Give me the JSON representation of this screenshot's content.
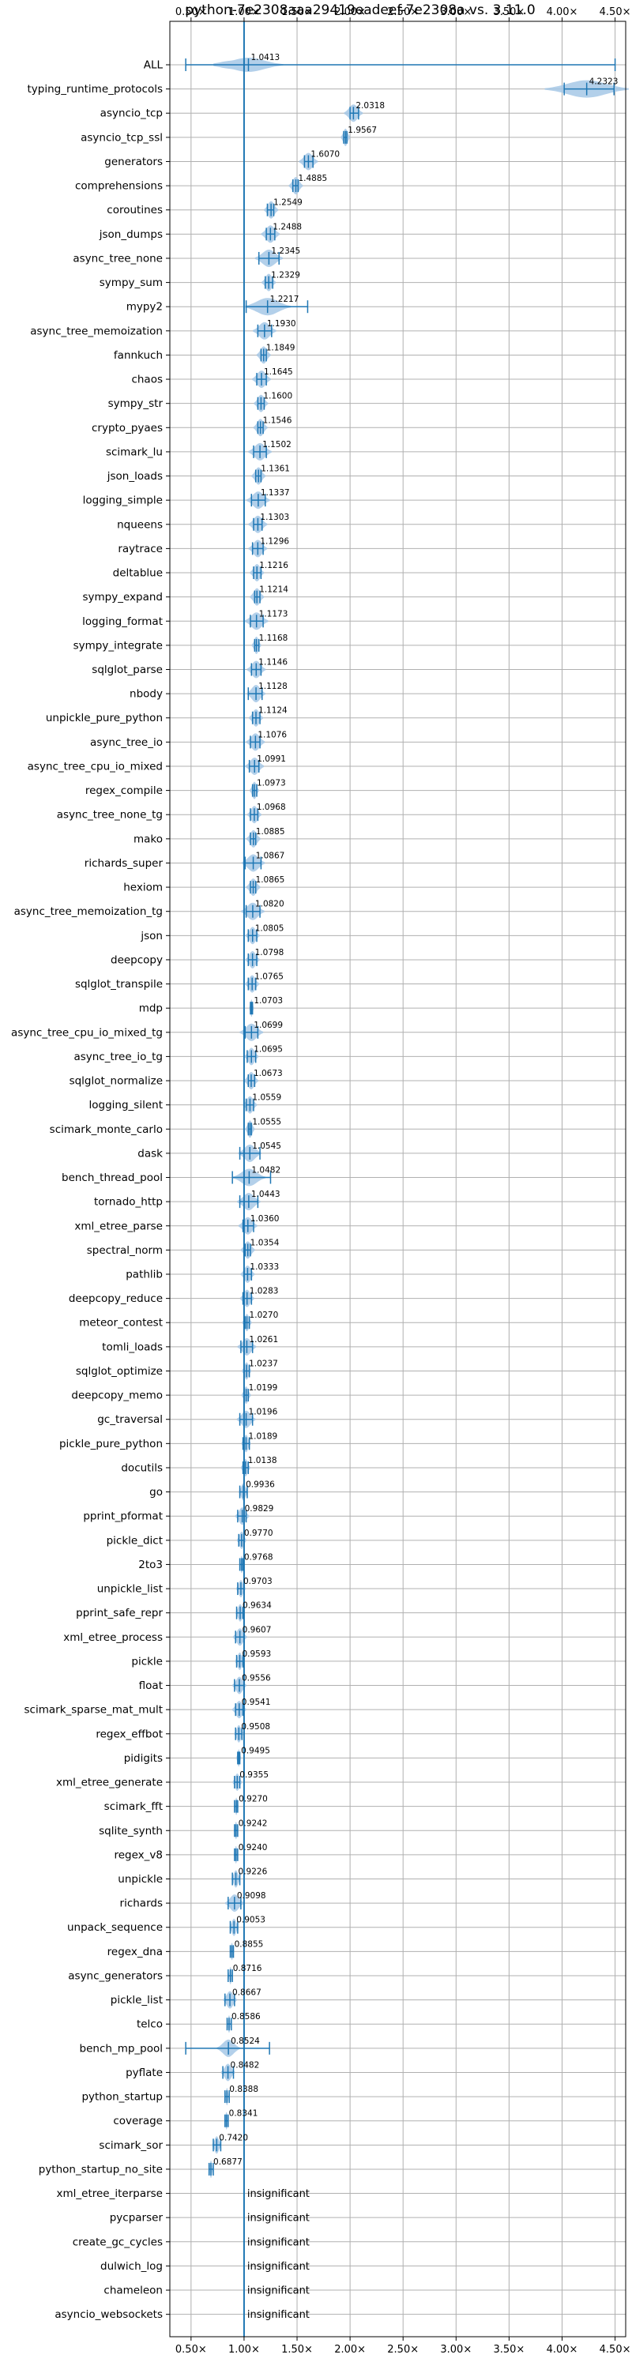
{
  "chart_data": {
    "type": "violin",
    "title": "python-7e2308aaa29419eadeef-7e2308a vs. 3.11.0",
    "xlabel": "",
    "ylabel": "",
    "xlim": [
      0.3,
      4.6
    ],
    "x_ticks": [
      0.5,
      1.0,
      1.5,
      2.0,
      2.5,
      3.0,
      3.5,
      4.0,
      4.5
    ],
    "x_tick_labels": [
      "0.50×",
      "1.00×",
      "1.50×",
      "2.00×",
      "2.50×",
      "3.00×",
      "3.50×",
      "4.00×",
      "4.50×"
    ],
    "reference_line": 1.0,
    "grid": true,
    "colors": {
      "violin": "#a6c8e6",
      "error_bar": "#1f77b4",
      "reference": "#1f77b4",
      "grid": "#b0b0b0"
    },
    "insignificant_label": "insignificant",
    "rows": [
      {
        "name": "ALL",
        "mean": 1.0413,
        "label": "1.0413",
        "lo": 0.45,
        "hi": 4.5,
        "spread": 0.15,
        "type": "all"
      },
      {
        "name": "typing_runtime_protocols",
        "mean": 4.2323,
        "label": "4.2323",
        "lo": 4.02,
        "hi": 4.49,
        "spread": 0.18
      },
      {
        "name": "asyncio_tcp",
        "mean": 2.0318,
        "label": "2.0318",
        "lo": 2.0,
        "hi": 2.08,
        "spread": 0.04
      },
      {
        "name": "asyncio_tcp_ssl",
        "mean": 1.9567,
        "label": "1.9567",
        "lo": 1.94,
        "hi": 1.97,
        "spread": 0.02
      },
      {
        "name": "generators",
        "mean": 1.607,
        "label": "1.6070",
        "lo": 1.57,
        "hi": 1.65,
        "spread": 0.04
      },
      {
        "name": "comprehensions",
        "mean": 1.4885,
        "label": "1.4885",
        "lo": 1.46,
        "hi": 1.51,
        "spread": 0.03
      },
      {
        "name": "coroutines",
        "mean": 1.2549,
        "label": "1.2549",
        "lo": 1.22,
        "hi": 1.28,
        "spread": 0.03
      },
      {
        "name": "json_dumps",
        "mean": 1.2488,
        "label": "1.2488",
        "lo": 1.21,
        "hi": 1.29,
        "spread": 0.04
      },
      {
        "name": "async_tree_none",
        "mean": 1.2345,
        "label": "1.2345",
        "lo": 1.14,
        "hi": 1.33,
        "spread": 0.06
      },
      {
        "name": "sympy_sum",
        "mean": 1.2329,
        "label": "1.2329",
        "lo": 1.2,
        "hi": 1.27,
        "spread": 0.03
      },
      {
        "name": "mypy2",
        "mean": 1.2217,
        "label": "1.2217",
        "lo": 1.02,
        "hi": 1.6,
        "spread": 0.1
      },
      {
        "name": "async_tree_memoization",
        "mean": 1.193,
        "label": "1.1930",
        "lo": 1.13,
        "hi": 1.26,
        "spread": 0.05
      },
      {
        "name": "fannkuch",
        "mean": 1.1849,
        "label": "1.1849",
        "lo": 1.16,
        "hi": 1.21,
        "spread": 0.03
      },
      {
        "name": "chaos",
        "mean": 1.1645,
        "label": "1.1645",
        "lo": 1.12,
        "hi": 1.21,
        "spread": 0.04
      },
      {
        "name": "sympy_str",
        "mean": 1.16,
        "label": "1.1600",
        "lo": 1.13,
        "hi": 1.19,
        "spread": 0.03
      },
      {
        "name": "crypto_pyaes",
        "mean": 1.1546,
        "label": "1.1546",
        "lo": 1.13,
        "hi": 1.18,
        "spread": 0.03
      },
      {
        "name": "scimark_lu",
        "mean": 1.1502,
        "label": "1.1502",
        "lo": 1.09,
        "hi": 1.21,
        "spread": 0.05
      },
      {
        "name": "json_loads",
        "mean": 1.1361,
        "label": "1.1361",
        "lo": 1.11,
        "hi": 1.16,
        "spread": 0.03
      },
      {
        "name": "logging_simple",
        "mean": 1.1337,
        "label": "1.1337",
        "lo": 1.07,
        "hi": 1.2,
        "spread": 0.05
      },
      {
        "name": "nqueens",
        "mean": 1.1303,
        "label": "1.1303",
        "lo": 1.09,
        "hi": 1.17,
        "spread": 0.04
      },
      {
        "name": "raytrace",
        "mean": 1.1296,
        "label": "1.1296",
        "lo": 1.08,
        "hi": 1.18,
        "spread": 0.04
      },
      {
        "name": "deltablue",
        "mean": 1.1216,
        "label": "1.1216",
        "lo": 1.09,
        "hi": 1.16,
        "spread": 0.03
      },
      {
        "name": "sympy_expand",
        "mean": 1.1214,
        "label": "1.1214",
        "lo": 1.1,
        "hi": 1.15,
        "spread": 0.03
      },
      {
        "name": "logging_format",
        "mean": 1.1173,
        "label": "1.1173",
        "lo": 1.06,
        "hi": 1.18,
        "spread": 0.05
      },
      {
        "name": "sympy_integrate",
        "mean": 1.1168,
        "label": "1.1168",
        "lo": 1.1,
        "hi": 1.14,
        "spread": 0.02
      },
      {
        "name": "sqlglot_parse",
        "mean": 1.1146,
        "label": "1.1146",
        "lo": 1.07,
        "hi": 1.16,
        "spread": 0.04
      },
      {
        "name": "nbody",
        "mean": 1.1128,
        "label": "1.1128",
        "lo": 1.04,
        "hi": 1.17,
        "spread": 0.04
      },
      {
        "name": "unpickle_pure_python",
        "mean": 1.1124,
        "label": "1.1124",
        "lo": 1.08,
        "hi": 1.15,
        "spread": 0.03
      },
      {
        "name": "async_tree_io",
        "mean": 1.1076,
        "label": "1.1076",
        "lo": 1.06,
        "hi": 1.15,
        "spread": 0.04
      },
      {
        "name": "async_tree_cpu_io_mixed",
        "mean": 1.0991,
        "label": "1.0991",
        "lo": 1.05,
        "hi": 1.14,
        "spread": 0.04
      },
      {
        "name": "regex_compile",
        "mean": 1.0973,
        "label": "1.0973",
        "lo": 1.08,
        "hi": 1.12,
        "spread": 0.02
      },
      {
        "name": "async_tree_none_tg",
        "mean": 1.0968,
        "label": "1.0968",
        "lo": 1.06,
        "hi": 1.13,
        "spread": 0.03
      },
      {
        "name": "mako",
        "mean": 1.0885,
        "label": "1.0885",
        "lo": 1.06,
        "hi": 1.11,
        "spread": 0.03
      },
      {
        "name": "richards_super",
        "mean": 1.0867,
        "label": "1.0867",
        "lo": 1.01,
        "hi": 1.16,
        "spread": 0.05
      },
      {
        "name": "hexiom",
        "mean": 1.0865,
        "label": "1.0865",
        "lo": 1.06,
        "hi": 1.11,
        "spread": 0.03
      },
      {
        "name": "async_tree_memoization_tg",
        "mean": 1.082,
        "label": "1.0820",
        "lo": 1.02,
        "hi": 1.15,
        "spread": 0.05
      },
      {
        "name": "json",
        "mean": 1.0805,
        "label": "1.0805",
        "lo": 1.04,
        "hi": 1.12,
        "spread": 0.03
      },
      {
        "name": "deepcopy",
        "mean": 1.0798,
        "label": "1.0798",
        "lo": 1.04,
        "hi": 1.12,
        "spread": 0.03
      },
      {
        "name": "sqlglot_transpile",
        "mean": 1.0765,
        "label": "1.0765",
        "lo": 1.04,
        "hi": 1.11,
        "spread": 0.03
      },
      {
        "name": "mdp",
        "mean": 1.0703,
        "label": "1.0703",
        "lo": 1.06,
        "hi": 1.08,
        "spread": 0.01
      },
      {
        "name": "async_tree_cpu_io_mixed_tg",
        "mean": 1.0699,
        "label": "1.0699",
        "lo": 1.01,
        "hi": 1.13,
        "spread": 0.05
      },
      {
        "name": "async_tree_io_tg",
        "mean": 1.0695,
        "label": "1.0695",
        "lo": 1.03,
        "hi": 1.11,
        "spread": 0.03
      },
      {
        "name": "sqlglot_normalize",
        "mean": 1.0673,
        "label": "1.0673",
        "lo": 1.04,
        "hi": 1.1,
        "spread": 0.03
      },
      {
        "name": "logging_silent",
        "mean": 1.0559,
        "label": "1.0559",
        "lo": 1.02,
        "hi": 1.09,
        "spread": 0.03
      },
      {
        "name": "scimark_monte_carlo",
        "mean": 1.0555,
        "label": "1.0555",
        "lo": 1.04,
        "hi": 1.07,
        "spread": 0.02
      },
      {
        "name": "dask",
        "mean": 1.0545,
        "label": "1.0545",
        "lo": 0.96,
        "hi": 1.15,
        "spread": 0.05
      },
      {
        "name": "bench_thread_pool",
        "mean": 1.0482,
        "label": "1.0482",
        "lo": 0.89,
        "hi": 1.25,
        "spread": 0.07
      },
      {
        "name": "tornado_http",
        "mean": 1.0443,
        "label": "1.0443",
        "lo": 0.96,
        "hi": 1.13,
        "spread": 0.05
      },
      {
        "name": "xml_etree_parse",
        "mean": 1.036,
        "label": "1.0360",
        "lo": 0.99,
        "hi": 1.09,
        "spread": 0.04
      },
      {
        "name": "spectral_norm",
        "mean": 1.0354,
        "label": "1.0354",
        "lo": 1.01,
        "hi": 1.06,
        "spread": 0.03
      },
      {
        "name": "pathlib",
        "mean": 1.0333,
        "label": "1.0333",
        "lo": 1.0,
        "hi": 1.07,
        "spread": 0.03
      },
      {
        "name": "deepcopy_reduce",
        "mean": 1.0283,
        "label": "1.0283",
        "lo": 0.99,
        "hi": 1.07,
        "spread": 0.03
      },
      {
        "name": "meteor_contest",
        "mean": 1.027,
        "label": "1.0270",
        "lo": 1.01,
        "hi": 1.05,
        "spread": 0.02
      },
      {
        "name": "tomli_loads",
        "mean": 1.0261,
        "label": "1.0261",
        "lo": 0.97,
        "hi": 1.08,
        "spread": 0.04
      },
      {
        "name": "sqlglot_optimize",
        "mean": 1.0237,
        "label": "1.0237",
        "lo": 1.0,
        "hi": 1.05,
        "spread": 0.02
      },
      {
        "name": "deepcopy_memo",
        "mean": 1.0199,
        "label": "1.0199",
        "lo": 1.0,
        "hi": 1.04,
        "spread": 0.02
      },
      {
        "name": "gc_traversal",
        "mean": 1.0196,
        "label": "1.0196",
        "lo": 0.96,
        "hi": 1.08,
        "spread": 0.04
      },
      {
        "name": "pickle_pure_python",
        "mean": 1.0189,
        "label": "1.0189",
        "lo": 0.99,
        "hi": 1.05,
        "spread": 0.02
      },
      {
        "name": "docutils",
        "mean": 1.0138,
        "label": "1.0138",
        "lo": 0.99,
        "hi": 1.04,
        "spread": 0.02
      },
      {
        "name": "go",
        "mean": 0.9936,
        "label": "0.9936",
        "lo": 0.96,
        "hi": 1.03,
        "spread": 0.02
      },
      {
        "name": "pprint_pformat",
        "mean": 0.9829,
        "label": "0.9829",
        "lo": 0.94,
        "hi": 1.02,
        "spread": 0.03
      },
      {
        "name": "pickle_dict",
        "mean": 0.977,
        "label": "0.9770",
        "lo": 0.95,
        "hi": 1.0,
        "spread": 0.02
      },
      {
        "name": "2to3",
        "mean": 0.9768,
        "label": "0.9768",
        "lo": 0.96,
        "hi": 0.99,
        "spread": 0.01
      },
      {
        "name": "unpickle_list",
        "mean": 0.9703,
        "label": "0.9703",
        "lo": 0.94,
        "hi": 1.0,
        "spread": 0.02
      },
      {
        "name": "pprint_safe_repr",
        "mean": 0.9634,
        "label": "0.9634",
        "lo": 0.93,
        "hi": 0.99,
        "spread": 0.02
      },
      {
        "name": "xml_etree_process",
        "mean": 0.9607,
        "label": "0.9607",
        "lo": 0.92,
        "hi": 1.0,
        "spread": 0.03
      },
      {
        "name": "pickle",
        "mean": 0.9593,
        "label": "0.9593",
        "lo": 0.93,
        "hi": 0.99,
        "spread": 0.02
      },
      {
        "name": "float",
        "mean": 0.9556,
        "label": "0.9556",
        "lo": 0.91,
        "hi": 1.0,
        "spread": 0.03
      },
      {
        "name": "scimark_sparse_mat_mult",
        "mean": 0.9541,
        "label": "0.9541",
        "lo": 0.92,
        "hi": 0.99,
        "spread": 0.03
      },
      {
        "name": "regex_effbot",
        "mean": 0.9508,
        "label": "0.9508",
        "lo": 0.92,
        "hi": 0.98,
        "spread": 0.02
      },
      {
        "name": "pidigits",
        "mean": 0.9495,
        "label": "0.9495",
        "lo": 0.94,
        "hi": 0.96,
        "spread": 0.01
      },
      {
        "name": "xml_etree_generate",
        "mean": 0.9355,
        "label": "0.9355",
        "lo": 0.91,
        "hi": 0.96,
        "spread": 0.02
      },
      {
        "name": "scimark_fft",
        "mean": 0.927,
        "label": "0.9270",
        "lo": 0.91,
        "hi": 0.94,
        "spread": 0.01
      },
      {
        "name": "sqlite_synth",
        "mean": 0.9242,
        "label": "0.9242",
        "lo": 0.91,
        "hi": 0.94,
        "spread": 0.01
      },
      {
        "name": "regex_v8",
        "mean": 0.924,
        "label": "0.9240",
        "lo": 0.91,
        "hi": 0.94,
        "spread": 0.01
      },
      {
        "name": "unpickle",
        "mean": 0.9226,
        "label": "0.9226",
        "lo": 0.89,
        "hi": 0.96,
        "spread": 0.02
      },
      {
        "name": "richards",
        "mean": 0.9098,
        "label": "0.9098",
        "lo": 0.85,
        "hi": 0.97,
        "spread": 0.04
      },
      {
        "name": "unpack_sequence",
        "mean": 0.9053,
        "label": "0.9053",
        "lo": 0.87,
        "hi": 0.94,
        "spread": 0.02
      },
      {
        "name": "regex_dna",
        "mean": 0.8855,
        "label": "0.8855",
        "lo": 0.87,
        "hi": 0.9,
        "spread": 0.01
      },
      {
        "name": "async_generators",
        "mean": 0.8716,
        "label": "0.8716",
        "lo": 0.85,
        "hi": 0.89,
        "spread": 0.01
      },
      {
        "name": "pickle_list",
        "mean": 0.8667,
        "label": "0.8667",
        "lo": 0.82,
        "hi": 0.91,
        "spread": 0.03
      },
      {
        "name": "telco",
        "mean": 0.8586,
        "label": "0.8586",
        "lo": 0.84,
        "hi": 0.88,
        "spread": 0.01
      },
      {
        "name": "bench_mp_pool",
        "mean": 0.8524,
        "label": "0.8524",
        "lo": 0.45,
        "hi": 1.24,
        "spread": 0.05
      },
      {
        "name": "pyflate",
        "mean": 0.8482,
        "label": "0.8482",
        "lo": 0.8,
        "hi": 0.9,
        "spread": 0.03
      },
      {
        "name": "python_startup",
        "mean": 0.8388,
        "label": "0.8388",
        "lo": 0.82,
        "hi": 0.86,
        "spread": 0.01
      },
      {
        "name": "coverage",
        "mean": 0.8341,
        "label": "0.8341",
        "lo": 0.82,
        "hi": 0.85,
        "spread": 0.01
      },
      {
        "name": "scimark_sor",
        "mean": 0.742,
        "label": "0.7420",
        "lo": 0.71,
        "hi": 0.78,
        "spread": 0.02
      },
      {
        "name": "python_startup_no_site",
        "mean": 0.6877,
        "label": "0.6877",
        "lo": 0.67,
        "hi": 0.71,
        "spread": 0.01
      },
      {
        "name": "xml_etree_iterparse",
        "insignificant": true
      },
      {
        "name": "pycparser",
        "insignificant": true
      },
      {
        "name": "create_gc_cycles",
        "insignificant": true
      },
      {
        "name": "dulwich_log",
        "insignificant": true
      },
      {
        "name": "chameleon",
        "insignificant": true
      },
      {
        "name": "asyncio_websockets",
        "insignificant": true
      }
    ]
  }
}
